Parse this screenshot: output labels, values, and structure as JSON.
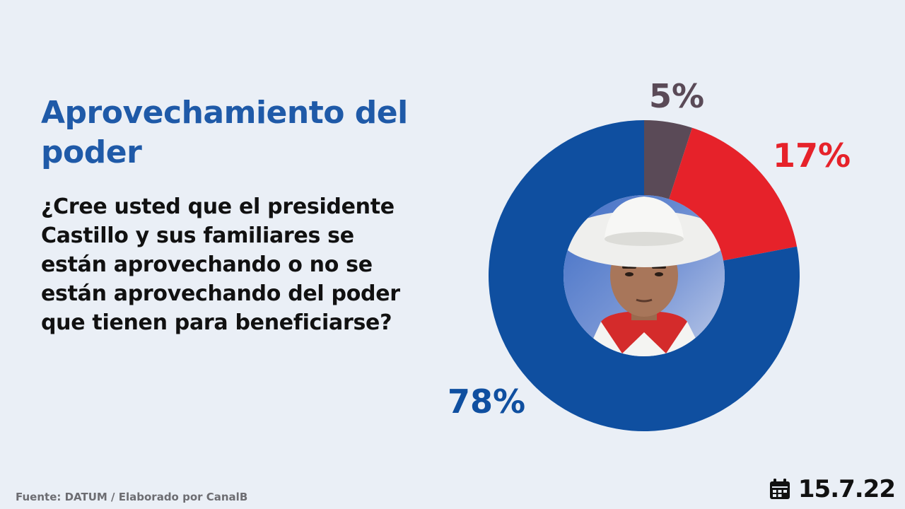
{
  "header": {
    "title": "Aprovechamiento del poder",
    "question": "¿Cree usted que el presidente Castillo y sus familiares se están aprovechando o no se están aprovechando del poder que tienen para beneficiarse?"
  },
  "chart_data": {
    "type": "pie",
    "donut": true,
    "slices": [
      {
        "value": 5,
        "label": "5%",
        "color": "#5a4a57"
      },
      {
        "value": 17,
        "label": "17%",
        "color": "#e6222a"
      },
      {
        "value": 78,
        "label": "78%",
        "color": "#0f4fa0"
      }
    ]
  },
  "center_image": {
    "description_icon": "portrait-photo"
  },
  "footer": {
    "source": "Fuente: DATUM / Elaborado por CanalB",
    "date": "15.7.22",
    "date_icon": "calendar-icon"
  }
}
